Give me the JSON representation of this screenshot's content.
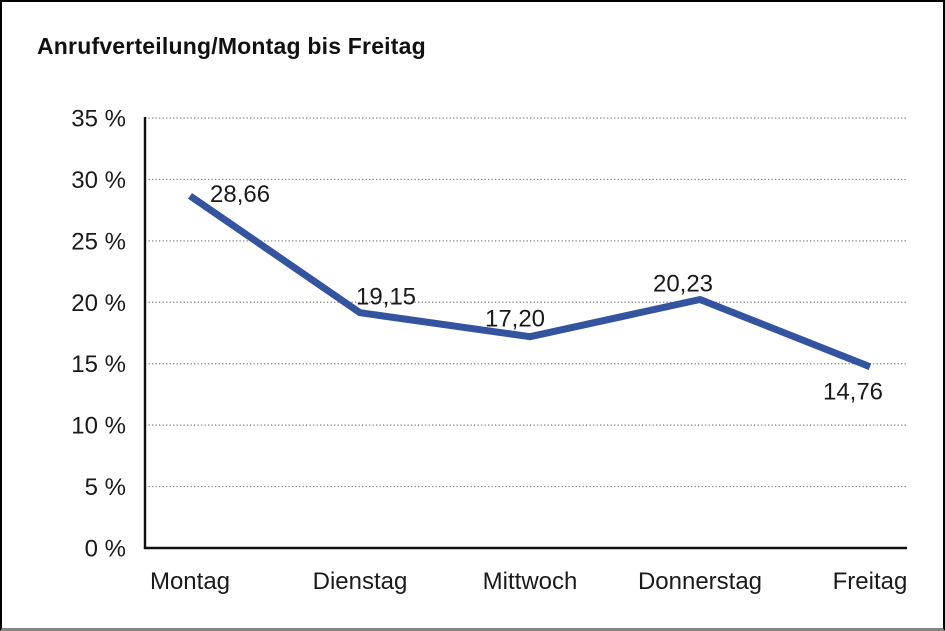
{
  "window": {
    "background": "#ffffff",
    "frame_border_color": "#000000",
    "frame_bottom_color": "#858585"
  },
  "chart_data": {
    "type": "line",
    "title": "Anrufverteilung/Montag bis Freitag",
    "categories": [
      "Montag",
      "Dienstag",
      "Mittwoch",
      "Donnerstag",
      "Freitag"
    ],
    "values": [
      28.66,
      19.15,
      17.2,
      20.23,
      14.76
    ],
    "value_labels": [
      "28,66",
      "19,15",
      "17,20",
      "20,23",
      "14,76"
    ],
    "y_ticks": [
      {
        "value": 0,
        "label": "0 %"
      },
      {
        "value": 5,
        "label": "5 %"
      },
      {
        "value": 10,
        "label": "10 %"
      },
      {
        "value": 15,
        "label": "15 %"
      },
      {
        "value": 20,
        "label": "20 %"
      },
      {
        "value": 25,
        "label": "25 %"
      },
      {
        "value": 30,
        "label": "30 %"
      },
      {
        "value": 35,
        "label": "35 %"
      }
    ],
    "ylim": [
      0,
      35
    ],
    "xlabel": "",
    "ylabel": "",
    "legend": "none",
    "grid": "horizontal-dotted",
    "colors": {
      "line": "#3454A0",
      "text": "#1a1a1a",
      "axis": "#111111",
      "gridline": "#808080"
    }
  }
}
